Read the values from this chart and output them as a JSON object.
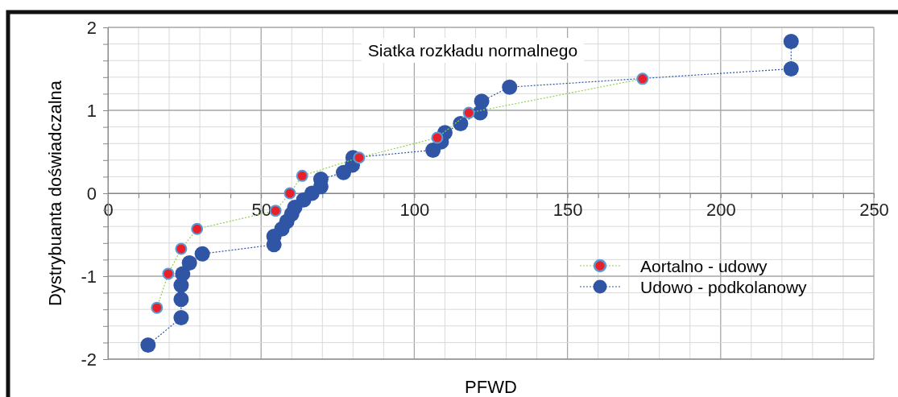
{
  "chart_data": {
    "type": "line",
    "title": "Siatka rozkładu normalnego",
    "xlabel": "PFWD",
    "ylabel": "Dystrybuanta doświadczalna",
    "xlim": [
      0,
      250
    ],
    "xticks": [
      0,
      {
        "value": 10,
        "label": null
      },
      {
        "value": 20,
        "label": null
      },
      {
        "value": 30,
        "label": null
      },
      {
        "value": 40,
        "label": null
      },
      50,
      {
        "value": 60,
        "label": null
      },
      {
        "value": 70,
        "label": null
      },
      {
        "value": 80,
        "label": null
      },
      {
        "value": 90,
        "label": null
      },
      100,
      {
        "value": 110,
        "label": null
      },
      {
        "value": 120,
        "label": null
      },
      {
        "value": 130,
        "label": null
      },
      {
        "value": 140,
        "label": null
      },
      150,
      {
        "value": 160,
        "label": null
      },
      {
        "value": 170,
        "label": null
      },
      {
        "value": 180,
        "label": null
      },
      {
        "value": 190,
        "label": null
      },
      200,
      {
        "value": 210,
        "label": null
      },
      {
        "value": 220,
        "label": null
      },
      {
        "value": 230,
        "label": null
      },
      {
        "value": 240,
        "label": null
      },
      250
    ],
    "ylim": [
      -2,
      2
    ],
    "yticks": [
      -2,
      {
        "value": -1.8,
        "label": null
      },
      {
        "value": -1.6,
        "label": null
      },
      {
        "value": -1.4,
        "label": null
      },
      {
        "value": -1.2,
        "label": null
      },
      -1,
      {
        "value": -0.8,
        "label": null
      },
      {
        "value": -0.6,
        "label": null
      },
      {
        "value": -0.4,
        "label": null
      },
      {
        "value": -0.2,
        "label": null
      },
      0,
      {
        "value": 0.2,
        "label": null
      },
      {
        "value": 0.4,
        "label": null
      },
      {
        "value": 0.6,
        "label": null
      },
      {
        "value": 0.8,
        "label": null
      },
      1,
      {
        "value": 1.2,
        "label": null
      },
      {
        "value": 1.4,
        "label": null
      },
      {
        "value": 1.6,
        "label": null
      },
      {
        "value": 1.8,
        "label": null
      },
      2
    ],
    "grid": true,
    "legend": "right",
    "marker": "circle",
    "line_style": "dotted",
    "series": [
      {
        "name": "Aortalno - udowy",
        "color": "#e8202a",
        "x": [
          16.0,
          19.7,
          23.9,
          29.1,
          54.7,
          59.4,
          63.4,
          82.0,
          107.5,
          117.8,
          174.5
        ],
        "values": [
          -1.38,
          -0.97,
          -0.67,
          -0.43,
          -0.21,
          0,
          0.21,
          0.43,
          0.67,
          0.97,
          1.38
        ]
      },
      {
        "name": "Udowo - podkolanowy",
        "color": "#2f55a4",
        "x": [
          13.1,
          23.9,
          23.9,
          23.9,
          24.4,
          26.6,
          30.8,
          54.2,
          54.2,
          56.8,
          58.4,
          60.0,
          61.0,
          63.9,
          66.6,
          69.5,
          69.5,
          76.9,
          79.8,
          80.0,
          106.1,
          108.8,
          110.0,
          115.1,
          121.5,
          122.0,
          131.1,
          223.0,
          223.0
        ],
        "values": [
          -1.83,
          -1.5,
          -1.28,
          -1.11,
          -0.97,
          -0.84,
          -0.73,
          -0.62,
          -0.52,
          -0.43,
          -0.34,
          -0.25,
          -0.17,
          -0.08,
          0,
          0.08,
          0.17,
          0.25,
          0.34,
          0.43,
          0.52,
          0.62,
          0.73,
          0.84,
          0.97,
          1.11,
          1.28,
          1.5,
          1.83
        ]
      }
    ]
  }
}
